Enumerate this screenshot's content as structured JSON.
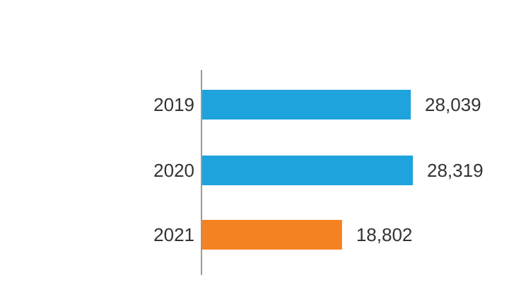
{
  "chart_data": {
    "type": "bar",
    "orientation": "horizontal",
    "categories": [
      "2019",
      "2020",
      "2021"
    ],
    "values": [
      28039,
      28319,
      18802
    ],
    "value_labels": [
      "28,039",
      "28,319",
      "18,802"
    ],
    "bar_colors": [
      "#1fa3dc",
      "#1fa3dc",
      "#f58220"
    ],
    "axis_color": "#9a9a9a",
    "text_color": "#333333",
    "title": "",
    "xlabel": "",
    "ylabel": "",
    "xlim": [
      0,
      28319
    ],
    "grid": false,
    "legend": "none"
  }
}
